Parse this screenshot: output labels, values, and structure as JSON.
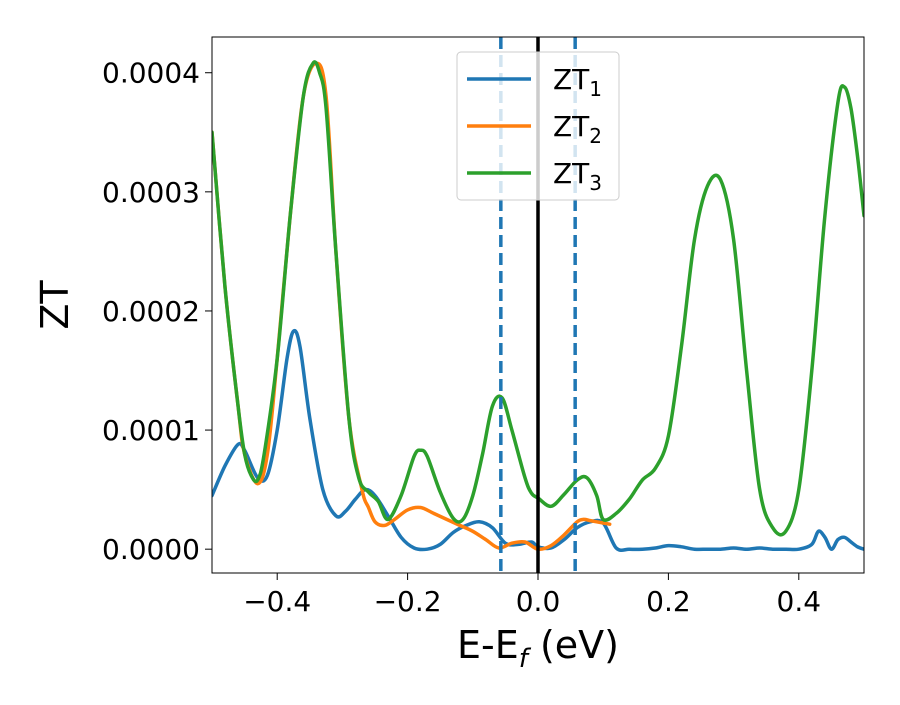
{
  "chart_data": {
    "type": "line",
    "xlabel": "E-E",
    "xlabel_subscript": "f",
    "xlabel_unit": " (eV)",
    "ylabel": "ZT",
    "xlim": [
      -0.5,
      0.5
    ],
    "ylim": [
      -2e-05,
      0.00043
    ],
    "x_ticks": [
      -0.4,
      -0.2,
      0.0,
      0.2,
      0.4
    ],
    "x_tick_labels": [
      "−0.4",
      "−0.2",
      "0.0",
      "0.2",
      "0.4"
    ],
    "y_ticks": [
      0.0,
      0.0001,
      0.0002,
      0.0003,
      0.0004
    ],
    "y_tick_labels": [
      "0.0000",
      "0.0001",
      "0.0002",
      "0.0003",
      "0.0004"
    ],
    "grid": false,
    "legend_position": "top-center",
    "vlines": [
      {
        "x": 0.0,
        "style": "solid",
        "color": "#000000"
      },
      {
        "x": -0.057,
        "style": "dashed",
        "color": "#1f77b4"
      },
      {
        "x": 0.057,
        "style": "dashed",
        "color": "#1f77b4"
      }
    ],
    "series": [
      {
        "label": "ZT",
        "label_subscript": "1",
        "color": "#1f77b4",
        "x": [
          -0.5,
          -0.48,
          -0.46,
          -0.45,
          -0.43,
          -0.415,
          -0.4,
          -0.385,
          -0.375,
          -0.365,
          -0.35,
          -0.33,
          -0.31,
          -0.295,
          -0.28,
          -0.265,
          -0.25,
          -0.23,
          -0.21,
          -0.19,
          -0.17,
          -0.15,
          -0.13,
          -0.11,
          -0.09,
          -0.07,
          -0.05,
          -0.03,
          -0.01,
          0.0,
          0.02,
          0.04,
          0.06,
          0.08,
          0.1,
          0.12,
          0.14,
          0.16,
          0.18,
          0.2,
          0.22,
          0.24,
          0.26,
          0.28,
          0.3,
          0.32,
          0.34,
          0.36,
          0.38,
          0.4,
          0.42,
          0.43,
          0.44,
          0.45,
          0.46,
          0.47,
          0.48,
          0.49,
          0.5
        ],
        "y": [
          4.5e-05,
          7e-05,
          8.8e-05,
          8.3e-05,
          6e-05,
          6.2e-05,
          0.0001,
          0.00016,
          0.000183,
          0.00017,
          0.00011,
          5e-05,
          2.8e-05,
          3.2e-05,
          4.2e-05,
          5e-05,
          4.5e-05,
          2.8e-05,
          1e-05,
          1e-06,
          0.0,
          4e-06,
          1.4e-05,
          2e-05,
          2.3e-05,
          1.8e-05,
          5e-06,
          4e-06,
          6e-06,
          2e-06,
          1e-06,
          8e-06,
          1.8e-05,
          2.3e-05,
          2.2e-05,
          1e-06,
          0.0,
          0.0,
          1e-06,
          3e-06,
          2e-06,
          0.0,
          0.0,
          0.0,
          1e-06,
          0.0,
          1e-06,
          0.0,
          0.0,
          0.0,
          4e-06,
          1.5e-05,
          1e-05,
          0.0,
          8e-06,
          1e-05,
          6e-06,
          2e-06,
          0.0
        ]
      },
      {
        "label": "ZT",
        "label_subscript": "2",
        "color": "#ff7f0e",
        "x": [
          -0.5,
          -0.48,
          -0.46,
          -0.45,
          -0.43,
          -0.415,
          -0.4,
          -0.38,
          -0.36,
          -0.34,
          -0.325,
          -0.31,
          -0.29,
          -0.27,
          -0.26,
          -0.25,
          -0.235,
          -0.22,
          -0.2,
          -0.18,
          -0.16,
          -0.14,
          -0.12,
          -0.1,
          -0.08,
          -0.06,
          -0.04,
          -0.02,
          0.0,
          0.02,
          0.04,
          0.06,
          0.07,
          0.08,
          0.09,
          0.1,
          0.11
        ],
        "y": [
          0.00035,
          0.00022,
          0.00012,
          8e-05,
          5.5e-05,
          8e-05,
          0.00016,
          0.00028,
          0.00038,
          0.000408,
          0.00038,
          0.00025,
          0.00011,
          5e-05,
          3.5e-05,
          2.3e-05,
          2e-05,
          2.5e-05,
          3.3e-05,
          3.5e-05,
          3e-05,
          2.5e-05,
          2e-05,
          1.5e-05,
          8e-06,
          1e-06,
          5e-06,
          6e-06,
          0.0,
          3e-06,
          1.2e-05,
          2.3e-05,
          2.5e-05,
          2.4e-05,
          2.3e-05,
          2.2e-05,
          2.1e-05
        ]
      },
      {
        "label": "ZT",
        "label_subscript": "3",
        "color": "#2ca02c",
        "x": [
          -0.5,
          -0.48,
          -0.46,
          -0.45,
          -0.44,
          -0.43,
          -0.42,
          -0.4,
          -0.38,
          -0.36,
          -0.345,
          -0.335,
          -0.325,
          -0.31,
          -0.29,
          -0.275,
          -0.26,
          -0.245,
          -0.23,
          -0.21,
          -0.19,
          -0.18,
          -0.17,
          -0.15,
          -0.13,
          -0.115,
          -0.1,
          -0.085,
          -0.07,
          -0.055,
          -0.04,
          -0.02,
          -0.01,
          0.0,
          0.02,
          0.04,
          0.06,
          0.075,
          0.09,
          0.1,
          0.12,
          0.14,
          0.16,
          0.18,
          0.2,
          0.22,
          0.24,
          0.26,
          0.28,
          0.3,
          0.32,
          0.34,
          0.36,
          0.38,
          0.4,
          0.42,
          0.44,
          0.46,
          0.47,
          0.48,
          0.49,
          0.5
        ],
        "y": [
          0.00035,
          0.00022,
          0.00012,
          8e-05,
          6.2e-05,
          5.8e-05,
          8e-05,
          0.00016,
          0.00028,
          0.00038,
          0.000408,
          0.0004,
          0.00037,
          0.00025,
          0.00011,
          6e-05,
          4.8e-05,
          4e-05,
          2.5e-05,
          4.5e-05,
          7.8e-05,
          8.3e-05,
          7.8e-05,
          4.8e-05,
          2.6e-05,
          2.5e-05,
          4.5e-05,
          8e-05,
          0.00012,
          0.000127,
          0.0001,
          6e-05,
          4.7e-05,
          4.3e-05,
          3.6e-05,
          4.6e-05,
          5.8e-05,
          6e-05,
          4.5e-05,
          2.5e-05,
          3e-05,
          4.2e-05,
          5.8e-05,
          6.8e-05,
          9.5e-05,
          0.00017,
          0.00026,
          0.000305,
          0.00031,
          0.00026,
          0.00015,
          5e-05,
          1.8e-05,
          1.5e-05,
          5e-05,
          0.00015,
          0.00028,
          0.000375,
          0.000388,
          0.00037,
          0.00033,
          0.00028
        ]
      }
    ]
  }
}
